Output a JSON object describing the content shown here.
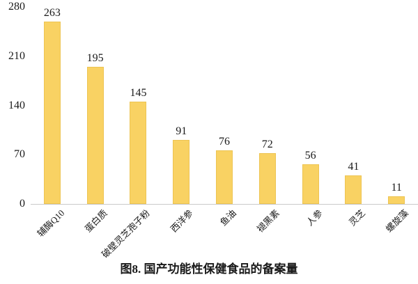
{
  "chart_data": {
    "type": "bar",
    "categories": [
      "辅酶Q10",
      "蛋白质",
      "破壁灵芝孢子粉",
      "西洋参",
      "鱼油",
      "褪黑素",
      "人参",
      "灵芝",
      "螺旋藻"
    ],
    "values": [
      263,
      195,
      145,
      91,
      76,
      72,
      56,
      41,
      11
    ],
    "title": "图8. 国产功能性保健食品的备案量",
    "xlabel": "",
    "ylabel": "",
    "ylim": [
      0,
      280
    ],
    "yticks": [
      0,
      70,
      140,
      210,
      280
    ],
    "grid": false,
    "legend": "none",
    "colors": {
      "bar_fill": "#F9D263",
      "bar_border": "#EDC453",
      "axis_line": "#C9C9C9",
      "text": "#1A1A1A",
      "background": "#FFFFFF"
    }
  }
}
